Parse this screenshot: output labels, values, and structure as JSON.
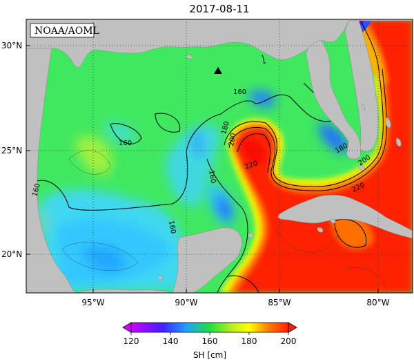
{
  "title": "2017-08-11",
  "organization": "NOAA/AOML",
  "lat_ticks": [
    {
      "value": 30,
      "label": "30°N"
    },
    {
      "value": 25,
      "label": "25°N"
    },
    {
      "value": 20,
      "label": "20°N"
    }
  ],
  "lon_ticks": [
    {
      "value": -95,
      "label": "95°W"
    },
    {
      "value": -90,
      "label": "90°W"
    },
    {
      "value": -85,
      "label": "85°W"
    },
    {
      "value": -80,
      "label": "80°W"
    }
  ],
  "contour_labels": [
    "160",
    "160",
    "160",
    "160",
    "180",
    "200",
    "220",
    "160",
    "180",
    "200",
    "220"
  ],
  "colorbar": {
    "label": "SH [cm]",
    "ticks": [
      "120",
      "140",
      "160",
      "180",
      "200"
    ],
    "min": 120,
    "max": 200
  },
  "colors": {
    "land": "#c0c0c0",
    "violet": "#cc00ff",
    "blue": "#2040ff",
    "cyan": "#20c0ff",
    "green": "#20e040",
    "yellow": "#ffff00",
    "orange": "#ff8000",
    "red": "#ff2000"
  },
  "marker": {
    "type": "triangle",
    "lon": -88.3,
    "lat": 28.8
  }
}
